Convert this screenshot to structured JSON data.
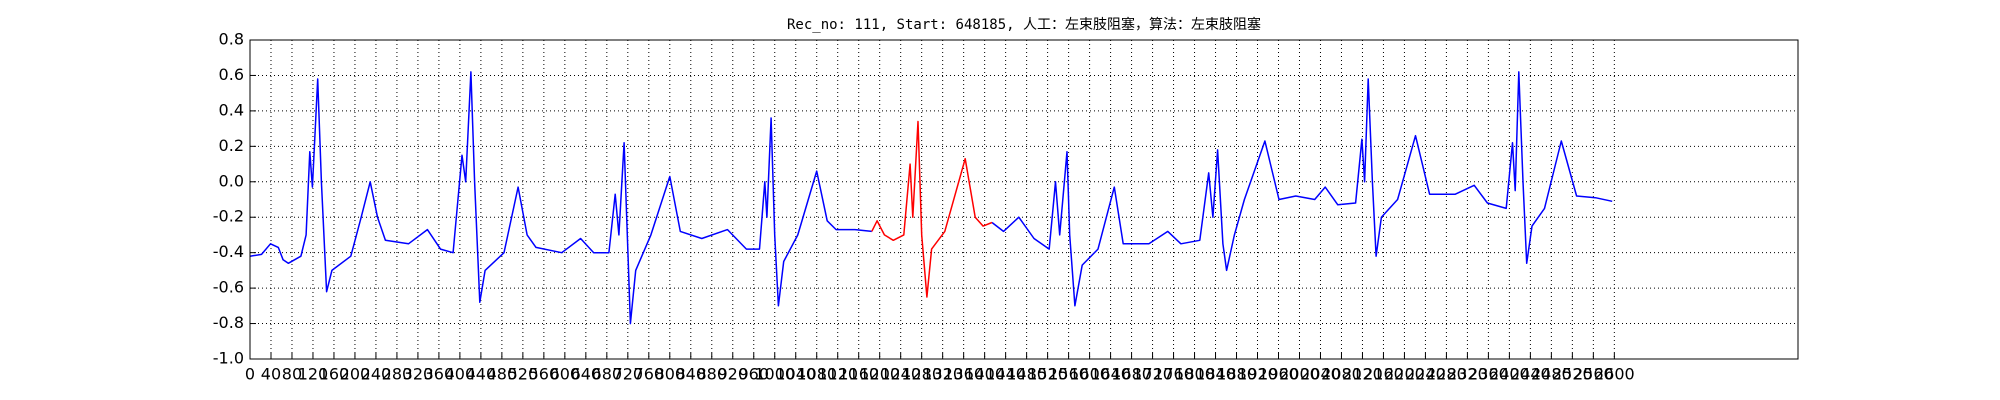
{
  "chart_data": {
    "type": "line",
    "title": "Rec_no: 111, Start: 648185, 人工：左束肢阻塞，算法：左束肢阻塞",
    "series": [
      {
        "color": "#0000ff",
        "x": [
          0,
          22,
          39,
          54,
          63,
          73,
          97,
          107,
          114,
          119,
          129,
          136,
          146,
          156,
          192,
          212,
          229,
          243,
          258,
          302,
          338,
          363,
          387,
          404,
          411,
          421,
          428,
          438,
          448,
          484,
          511,
          528,
          545,
          594,
          630,
          655,
          684,
          696,
          703,
          713,
          725,
          735,
          764,
          800,
          820,
          861,
          910,
          946,
          971,
          981,
          985,
          993,
          1000,
          1007,
          1017,
          1044,
          1080,
          1100,
          1117,
          1153,
          1185,
          1300,
          1414,
          1436,
          1465,
          1494,
          1523,
          1535,
          1543,
          1557,
          1562,
          1572,
          1586,
          1616,
          1647,
          1664,
          1713,
          1749,
          1774,
          1810,
          1827,
          1835,
          1844,
          1854,
          1861,
          1876,
          1895,
          1934,
          1961,
          1993,
          2029,
          2049,
          2073,
          2107,
          2119,
          2124,
          2131,
          2139,
          2146,
          2156,
          2187,
          2221,
          2248,
          2297,
          2333,
          2358,
          2394,
          2406,
          2411,
          2418,
          2426,
          2433,
          2443,
          2467,
          2499,
          2528,
          2564,
          2596
        ],
        "values": [
          -0.42,
          -0.41,
          -0.35,
          -0.37,
          -0.44,
          -0.46,
          -0.42,
          -0.3,
          0.17,
          -0.03,
          0.58,
          0.0,
          -0.62,
          -0.5,
          -0.42,
          -0.2,
          0.0,
          -0.2,
          -0.33,
          -0.35,
          -0.27,
          -0.38,
          -0.4,
          0.15,
          0.0,
          0.62,
          0.0,
          -0.68,
          -0.5,
          -0.4,
          -0.03,
          -0.3,
          -0.37,
          -0.4,
          -0.32,
          -0.4,
          -0.4,
          -0.07,
          -0.3,
          0.22,
          -0.8,
          -0.5,
          -0.3,
          0.03,
          -0.28,
          -0.32,
          -0.27,
          -0.38,
          -0.38,
          0.0,
          -0.2,
          0.36,
          -0.3,
          -0.7,
          -0.45,
          -0.3,
          0.06,
          -0.22,
          -0.27,
          -0.27,
          -0.28,
          null,
          -0.23,
          -0.28,
          -0.2,
          -0.32,
          -0.38,
          0.0,
          -0.3,
          0.17,
          -0.3,
          -0.7,
          -0.47,
          -0.38,
          -0.03,
          -0.35,
          -0.35,
          -0.28,
          -0.35,
          -0.33,
          0.05,
          -0.2,
          0.18,
          -0.35,
          -0.5,
          -0.3,
          -0.1,
          0.23,
          -0.1,
          -0.08,
          -0.1,
          -0.03,
          -0.13,
          -0.12,
          0.24,
          0.0,
          0.58,
          0.0,
          -0.42,
          -0.2,
          -0.1,
          0.26,
          -0.07,
          -0.07,
          -0.02,
          -0.12,
          -0.15,
          0.22,
          -0.05,
          0.62,
          0.0,
          -0.46,
          -0.25,
          -0.15,
          0.23,
          -0.08,
          -0.09,
          -0.11
        ]
      },
      {
        "color": "#ff0000",
        "x": [
          1185,
          1195,
          1209,
          1226,
          1246,
          1258,
          1263,
          1273,
          1280,
          1290,
          1299,
          1324,
          1363,
          1382,
          1397,
          1414
        ],
        "values": [
          -0.28,
          -0.22,
          -0.3,
          -0.33,
          -0.3,
          0.1,
          -0.2,
          0.34,
          -0.3,
          -0.65,
          -0.38,
          -0.28,
          0.13,
          -0.2,
          -0.25,
          -0.23
        ]
      }
    ],
    "xlim": [
      0,
      2950
    ],
    "xticks": [
      0,
      40,
      80,
      120,
      160,
      200,
      240,
      280,
      320,
      360,
      400,
      440,
      480,
      520,
      560,
      600,
      640,
      680,
      720,
      760,
      800,
      840,
      880,
      920,
      960,
      1000,
      1040,
      1080,
      1120,
      1160,
      1200,
      1240,
      1280,
      1320,
      1360,
      1400,
      1440,
      1480,
      1520,
      1560,
      1600,
      1640,
      1680,
      1720,
      1760,
      1800,
      1840,
      1880,
      1920,
      1960,
      2000,
      2040,
      2080,
      2120,
      2160,
      2200,
      2240,
      2280,
      2320,
      2360,
      2400,
      2440,
      2480,
      2520,
      2560,
      2600
    ],
    "ylim": [
      -1.0,
      0.8
    ],
    "yticks": [
      {
        "value": -1.0,
        "label": "-1.0"
      },
      {
        "value": -0.8,
        "label": "-0.8"
      },
      {
        "value": -0.6,
        "label": "-0.6"
      },
      {
        "value": -0.4,
        "label": "-0.4"
      },
      {
        "value": -0.2,
        "label": "-0.2"
      },
      {
        "value": 0.0,
        "label": "0.0"
      },
      {
        "value": 0.2,
        "label": "0.2"
      },
      {
        "value": 0.4,
        "label": "0.4"
      },
      {
        "value": 0.6,
        "label": "0.6"
      },
      {
        "value": 0.8,
        "label": "0.8"
      }
    ],
    "grid": true
  }
}
